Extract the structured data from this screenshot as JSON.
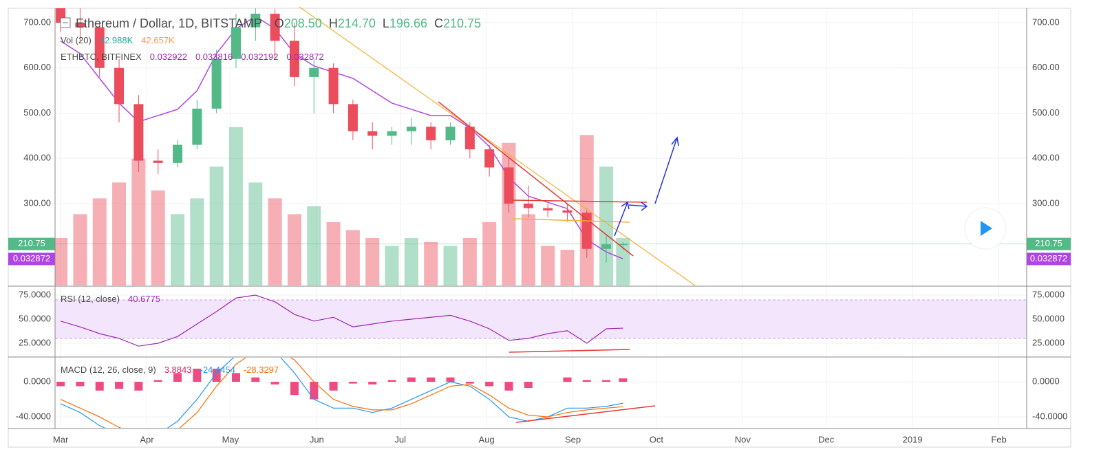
{
  "chart_data": [
    {
      "type": "candlestick",
      "title": "Ethereum / Dollar, 1D, BITSTAMP",
      "ohlc": [
        {
          "name": "O",
          "value": 208.5,
          "label": "208.50"
        },
        {
          "name": "H",
          "value": 214.7,
          "label": "214.70"
        },
        {
          "name": "L",
          "value": 196.66,
          "label": "196.66"
        },
        {
          "name": "C",
          "value": 210.75,
          "label": "210.75"
        }
      ],
      "x": [
        0,
        7,
        14,
        21,
        28,
        35,
        42,
        49,
        56,
        63,
        70,
        77,
        84,
        91,
        98,
        105,
        112,
        119,
        126,
        133,
        140,
        147,
        154,
        161,
        168,
        175,
        182,
        189,
        196,
        202
      ],
      "open": [
        740,
        700,
        690,
        600,
        520,
        395,
        390,
        430,
        510,
        620,
        690,
        720,
        660,
        580,
        600,
        520,
        460,
        450,
        460,
        470,
        440,
        470,
        420,
        380,
        300,
        290,
        285,
        280,
        200,
        208.5
      ],
      "high": [
        760,
        740,
        700,
        620,
        540,
        420,
        440,
        530,
        640,
        720,
        740,
        730,
        700,
        620,
        610,
        530,
        480,
        470,
        490,
        480,
        480,
        480,
        430,
        400,
        340,
        300,
        300,
        290,
        230,
        214.7
      ],
      "low": [
        680,
        660,
        580,
        480,
        370,
        365,
        380,
        420,
        500,
        600,
        660,
        620,
        560,
        500,
        500,
        440,
        420,
        430,
        430,
        420,
        430,
        400,
        360,
        280,
        270,
        270,
        260,
        180,
        170,
        196.66
      ],
      "close": [
        700,
        690,
        600,
        520,
        395,
        390,
        430,
        510,
        620,
        690,
        720,
        660,
        580,
        600,
        520,
        460,
        450,
        460,
        470,
        440,
        470,
        420,
        380,
        300,
        290,
        285,
        280,
        200,
        210,
        210.75
      ],
      "up_color": "#53b987",
      "down_color": "#eb4d5c",
      "xlim": [
        -2,
        347
      ],
      "ylim": [
        119,
        732
      ],
      "yticks": [
        {
          "value": 300,
          "label": "300.00"
        },
        {
          "value": 400,
          "label": "400.00"
        },
        {
          "value": 500,
          "label": "500.00"
        },
        {
          "value": 600,
          "label": "600.00"
        },
        {
          "value": 700,
          "label": "700.00"
        }
      ],
      "last_price": {
        "value": 210.75,
        "label": "210.75"
      },
      "volume": {
        "name": "Vol (20)",
        "ylim": [
          0,
          350000
        ],
        "values": [
          60000,
          90000,
          110000,
          130000,
          160000,
          120000,
          90000,
          110000,
          150000,
          200000,
          130000,
          110000,
          90000,
          100000,
          80000,
          70000,
          60000,
          50000,
          60000,
          55000,
          50000,
          60000,
          80000,
          180000,
          90000,
          50000,
          45000,
          190000,
          150000,
          60000
        ],
        "legend": [
          {
            "value": 42988,
            "label": "42.988K"
          },
          {
            "value": 42657,
            "label": "42.657K"
          }
        ]
      },
      "overlay": {
        "name": "ETHBTC, BITFINEX",
        "color": "#b044e6",
        "y2lim": [
          0.0286,
          0.0733
        ],
        "values": [
          0.068,
          0.066,
          0.062,
          0.058,
          0.055,
          0.056,
          0.057,
          0.06,
          0.066,
          0.07,
          0.072,
          0.07,
          0.066,
          0.064,
          0.063,
          0.062,
          0.06,
          0.058,
          0.057,
          0.056,
          0.056,
          0.054,
          0.051,
          0.046,
          0.043,
          0.042,
          0.041,
          0.036,
          0.034,
          0.0329
        ],
        "legend": [
          {
            "value": 0.032922,
            "label": "0.032922"
          },
          {
            "value": 0.033816,
            "label": "0.033816"
          },
          {
            "value": 0.032192,
            "label": "0.032192"
          },
          {
            "value": 0.032872,
            "label": "0.032872"
          }
        ],
        "last": {
          "value": 0.032872,
          "label": "0.032872"
        }
      }
    },
    {
      "type": "line",
      "title": "RSI (12, close)",
      "color": "#9c27b0",
      "last": {
        "value": 40.6775,
        "label": "40.6775"
      },
      "values": [
        48,
        42,
        35,
        30,
        22,
        25,
        32,
        45,
        58,
        72,
        75,
        68,
        55,
        48,
        52,
        42,
        45,
        48,
        50,
        52,
        54,
        48,
        40,
        28,
        30,
        35,
        38,
        25,
        40,
        40.6775
      ],
      "ylim": [
        11.4,
        82.9
      ],
      "band": [
        30,
        70
      ],
      "yticks": [
        {
          "value": 25,
          "label": "25.0000"
        },
        {
          "value": 50,
          "label": "50.0000"
        },
        {
          "value": 75,
          "label": "75.0000"
        }
      ]
    },
    {
      "type": "macd",
      "title": "MACD (12, 26, close, 9)",
      "histogram": {
        "color": "#e91e63",
        "last": {
          "value": 3.8843,
          "label": "3.8843"
        },
        "values": [
          -5,
          -5,
          -10,
          -8,
          -10,
          2,
          10,
          15,
          15,
          10,
          5,
          -3,
          -15,
          -20,
          -10,
          -2,
          -3,
          2,
          5,
          5,
          5,
          -2,
          -5,
          -10,
          -7,
          0,
          5,
          2,
          2,
          3.8843
        ]
      },
      "macd": {
        "color": "#2196f3",
        "last": {
          "value": -24.4454,
          "label": "-24.4454"
        },
        "values": [
          -25,
          -35,
          -50,
          -60,
          -70,
          -60,
          -45,
          -20,
          10,
          30,
          40,
          35,
          10,
          -20,
          -30,
          -30,
          -35,
          -30,
          -20,
          -10,
          0,
          -5,
          -20,
          -40,
          -45,
          -40,
          -30,
          -30,
          -28,
          -24.4454
        ]
      },
      "signal": {
        "color": "#ff6d00",
        "last": {
          "value": -28.3297,
          "label": "-28.3297"
        },
        "values": [
          -20,
          -30,
          -40,
          -52,
          -60,
          -62,
          -55,
          -35,
          -5,
          20,
          35,
          38,
          25,
          0,
          -20,
          -28,
          -32,
          -32,
          -25,
          -15,
          -5,
          -3,
          -15,
          -30,
          -38,
          -40,
          -35,
          -32,
          -30,
          -28.3297
        ]
      },
      "ylim": [
        -52.5,
        27.5
      ],
      "yticks": [
        {
          "value": -40,
          "label": "-40.0000"
        },
        {
          "value": 0,
          "label": "0.0000"
        }
      ],
      "xticks": [
        {
          "value": 0,
          "label": "Mar"
        },
        {
          "value": 31,
          "label": "Apr"
        },
        {
          "value": 61,
          "label": "May"
        },
        {
          "value": 92,
          "label": "Jun"
        },
        {
          "value": 122,
          "label": "Jul"
        },
        {
          "value": 153,
          "label": "Aug"
        },
        {
          "value": 184,
          "label": "Sep"
        },
        {
          "value": 214,
          "label": "Oct"
        },
        {
          "value": 245,
          "label": "Nov"
        },
        {
          "value": 275,
          "label": "Dec"
        },
        {
          "value": 306,
          "label": "2019"
        },
        {
          "value": 337,
          "label": "Feb"
        }
      ]
    }
  ]
}
